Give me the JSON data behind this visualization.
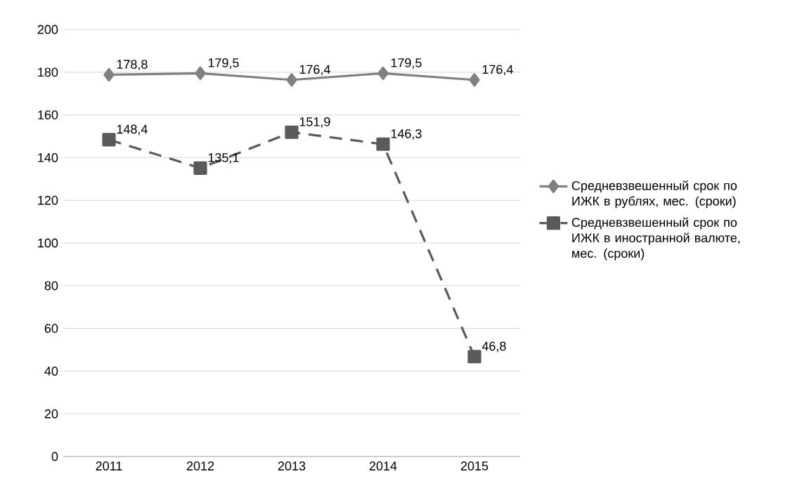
{
  "chart_data": {
    "type": "line",
    "categories": [
      "2011",
      "2012",
      "2013",
      "2014",
      "2015"
    ],
    "series": [
      {
        "name": "Средневзвешенный срок по ИЖК в рублях, мес. (сроки)",
        "color": "#808080",
        "marker": "diamond",
        "line_style": "solid",
        "values": [
          178.8,
          179.5,
          176.4,
          179.5,
          176.4
        ],
        "value_labels": [
          "178,8",
          "179,5",
          "176,4",
          "179,5",
          "176,4"
        ]
      },
      {
        "name": "Средневзвешенный срок по ИЖК в иностранной валюте, мес. (сроки)",
        "color": "#5a5a5a",
        "marker": "square",
        "line_style": "dashed",
        "values": [
          148.4,
          135.1,
          151.9,
          146.3,
          46.8
        ],
        "value_labels": [
          "148,4",
          "135,1",
          "151,9",
          "146,3",
          "46,8"
        ]
      }
    ],
    "ylim": [
      0,
      200
    ],
    "yticks": [
      0,
      20,
      40,
      60,
      80,
      100,
      120,
      140,
      160,
      180,
      200
    ],
    "grid": "y",
    "legend": "right"
  }
}
